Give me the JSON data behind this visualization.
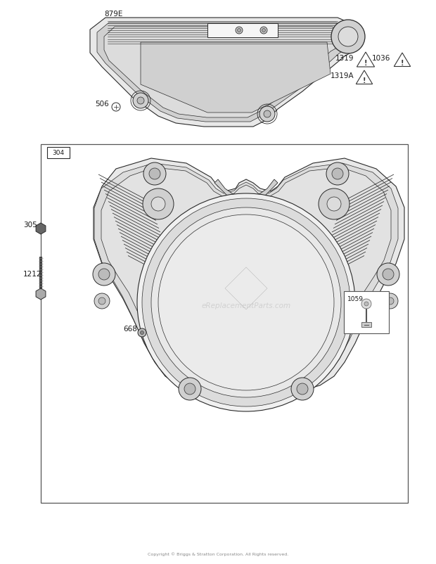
{
  "bg_color": "#ffffff",
  "copyright": "Copyright © Briggs & Stratton Corporation. All Rights reserved.",
  "label_color": "#1a1a1a",
  "line_color": "#2a2a2a",
  "fs": 7.5,
  "watermark": "eReplacementParts.com"
}
